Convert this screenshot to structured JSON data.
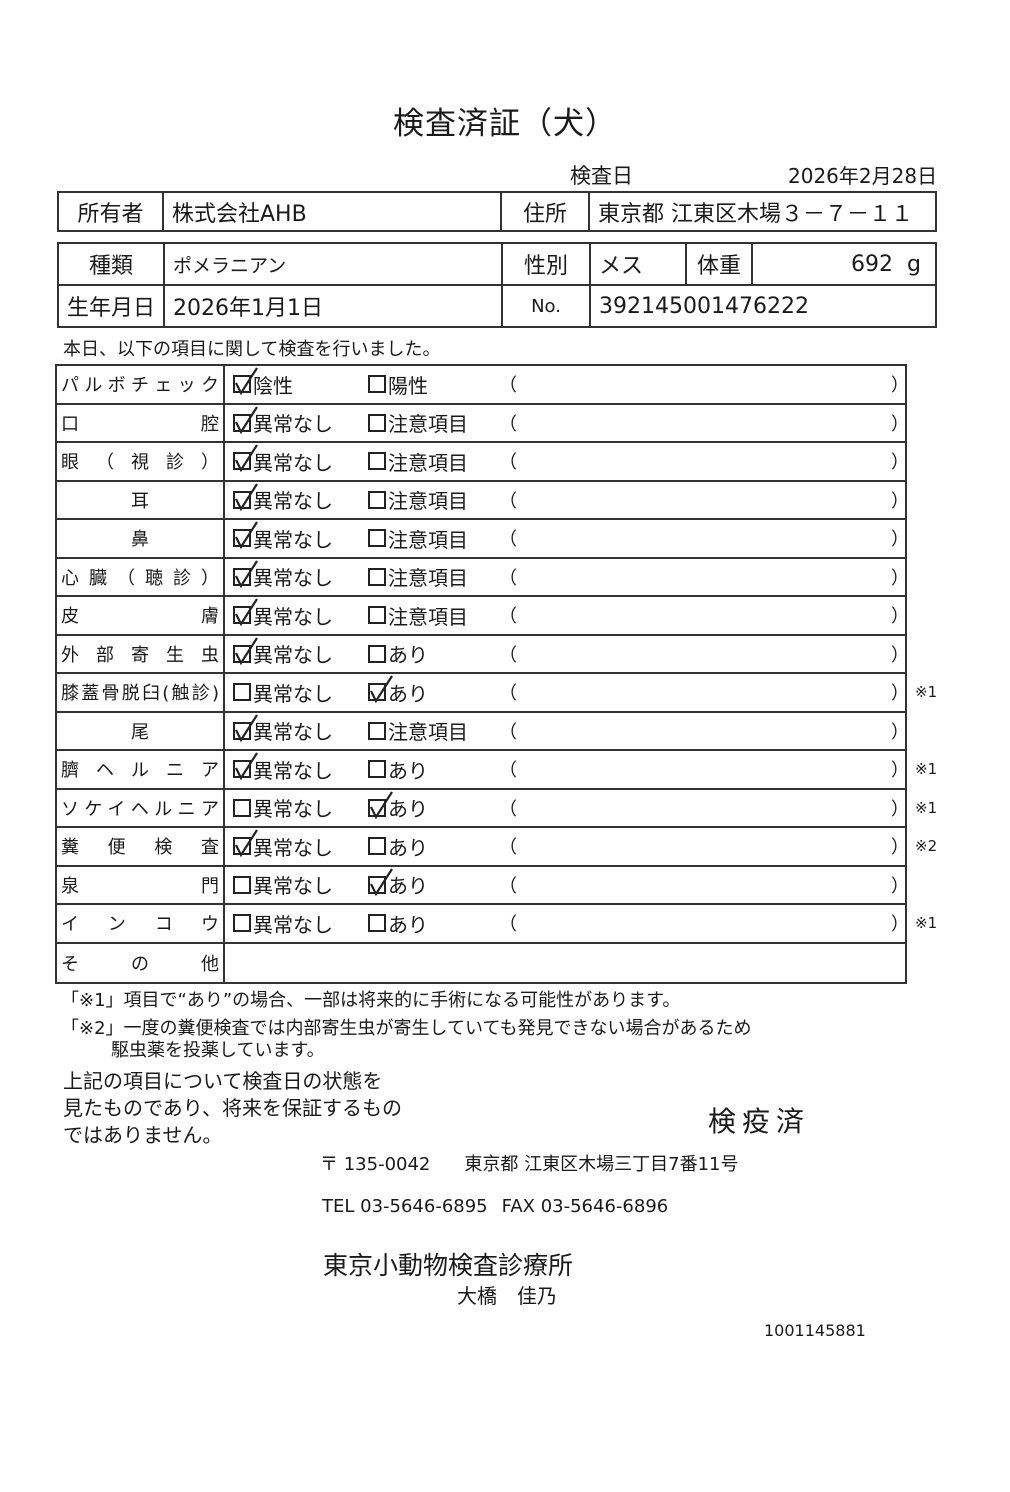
{
  "document": {
    "title": "検査済証（犬）",
    "inspection_date_label": "検査日",
    "inspection_date": "2026年2月28日"
  },
  "owner": {
    "owner_label": "所有者",
    "owner_value": "株式会社AHB",
    "address_label": "住所",
    "address_value": "東京都 江東区木場３－７－１１"
  },
  "animal": {
    "breed_label": "種類",
    "breed_value": "ポメラニアン",
    "sex_label": "性別",
    "sex_value": "メス",
    "weight_label": "体重",
    "weight_value": "692",
    "weight_unit": "g",
    "birth_label": "生年月日",
    "birth_value": "2026年1月1日",
    "no_label": "No.",
    "no_value": "392145001476222"
  },
  "intro": "本日、以下の項目に関して検査を行いました。",
  "checks": [
    {
      "label": "パルボチェック",
      "options": [
        "陰性",
        "陽性"
      ],
      "checked": 0,
      "note": ""
    },
    {
      "label": "口腔",
      "options": [
        "異常なし",
        "注意項目"
      ],
      "checked": 0,
      "note": ""
    },
    {
      "label": "眼（視診）",
      "options": [
        "異常なし",
        "注意項目"
      ],
      "checked": 0,
      "note": ""
    },
    {
      "label": "耳",
      "options": [
        "異常なし",
        "注意項目"
      ],
      "checked": 0,
      "note": ""
    },
    {
      "label": "鼻",
      "options": [
        "異常なし",
        "注意項目"
      ],
      "checked": 0,
      "note": ""
    },
    {
      "label": "心臓（聴診）",
      "options": [
        "異常なし",
        "注意項目"
      ],
      "checked": 0,
      "note": ""
    },
    {
      "label": "皮膚",
      "options": [
        "異常なし",
        "注意項目"
      ],
      "checked": 0,
      "note": ""
    },
    {
      "label": "外部寄生虫",
      "options": [
        "異常なし",
        "あり"
      ],
      "checked": 0,
      "note": ""
    },
    {
      "label": "膝蓋骨脱臼(触診)",
      "options": [
        "異常なし",
        "あり"
      ],
      "checked": 1,
      "note": "※1"
    },
    {
      "label": "尾",
      "options": [
        "異常なし",
        "注意項目"
      ],
      "checked": 0,
      "note": ""
    },
    {
      "label": "臍ヘルニア",
      "options": [
        "異常なし",
        "あり"
      ],
      "checked": 0,
      "note": "※1"
    },
    {
      "label": "ソケイヘルニア",
      "options": [
        "異常なし",
        "あり"
      ],
      "checked": 1,
      "note": "※1"
    },
    {
      "label": "糞便検査",
      "options": [
        "異常なし",
        "あり"
      ],
      "checked": 0,
      "note": "※2"
    },
    {
      "label": "泉門",
      "options": [
        "異常なし",
        "あり"
      ],
      "checked": 1,
      "note": ""
    },
    {
      "label": "インコウ",
      "options": [
        "異常なし",
        "あり"
      ],
      "checked": null,
      "note": "※1"
    },
    {
      "label": "その他",
      "options": [],
      "checked": null,
      "note": ""
    }
  ],
  "paren_open": "（",
  "paren_close": "）",
  "footnotes": {
    "note1": "「※1」項目で“あり”の場合、一部は将来的に手術になる可能性があります。",
    "note2_line1": "「※2」一度の糞便検査では内部寄生虫が寄生していても発見できない場合があるため",
    "note2_line2": "駆虫薬を投薬しています。"
  },
  "statement": [
    "上記の項目について検査日の状態を",
    "見たものであり、将来を保証するもの",
    "ではありません。"
  ],
  "stamp": "検疫済",
  "clinic": {
    "postal": "〒 135-0042",
    "address": "東京都 江東区木場三丁目7番11号",
    "tel": "TEL 03-5646-6895",
    "fax": "FAX 03-5646-6896",
    "name": "東京小動物検査診療所",
    "person": "大橋　佳乃"
  },
  "serial": "1001145881"
}
